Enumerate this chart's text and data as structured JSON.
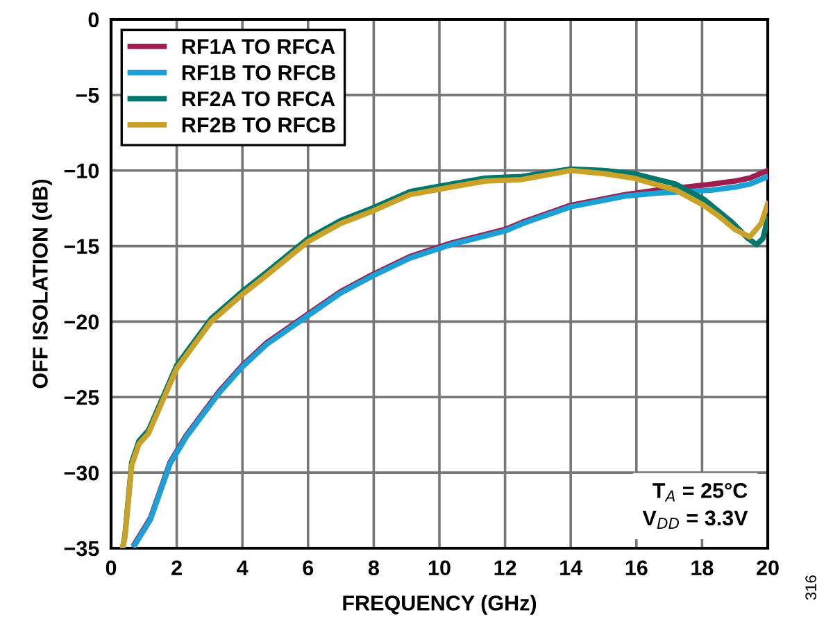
{
  "chart_data": {
    "type": "line",
    "xlabel": "FREQUENCY (GHz)",
    "ylabel": "OFF ISOLATION (dB)",
    "xlim": [
      0,
      20
    ],
    "ylim": [
      -35,
      0
    ],
    "xticks": [
      0,
      2,
      4,
      6,
      8,
      10,
      12,
      14,
      16,
      18,
      20
    ],
    "yticks": [
      -35,
      -30,
      -25,
      -20,
      -15,
      -10,
      -5,
      0
    ],
    "grid": true,
    "legend": "top left",
    "line_style": "solid",
    "marker": "none",
    "series": [
      {
        "name": "RF1A TO RFCA",
        "color": "#9e1f4f",
        "x": [
          0.72,
          1.2,
          1.8,
          2.3,
          3.3,
          4.0,
          4.74,
          6.0,
          7.0,
          7.95,
          9.1,
          10.36,
          12.0,
          12.55,
          14.0,
          15.65,
          16.6,
          17.5,
          18.3,
          19.0,
          19.45,
          20
        ],
        "values": [
          -34.7,
          -33.0,
          -29.3,
          -27.5,
          -24.6,
          -22.9,
          -21.4,
          -19.5,
          -18.0,
          -16.9,
          -15.7,
          -14.8,
          -13.9,
          -13.4,
          -12.3,
          -11.6,
          -11.3,
          -11.1,
          -10.9,
          -10.7,
          -10.5,
          -10.0
        ]
      },
      {
        "name": "RF1B TO RFCB",
        "color": "#1ba1d6",
        "x": [
          0.72,
          1.2,
          1.8,
          2.3,
          3.3,
          4.0,
          4.74,
          6.0,
          7.0,
          7.95,
          9.1,
          10.36,
          12.0,
          12.55,
          14.0,
          15.65,
          16.6,
          17.5,
          18.3,
          19.0,
          19.45,
          20
        ],
        "values": [
          -34.8,
          -33.1,
          -29.4,
          -27.6,
          -24.7,
          -23.0,
          -21.5,
          -19.6,
          -18.1,
          -17.0,
          -15.8,
          -14.9,
          -14.0,
          -13.5,
          -12.4,
          -11.7,
          -11.5,
          -11.4,
          -11.3,
          -11.1,
          -10.9,
          -10.4
        ]
      },
      {
        "name": "RF2A TO RFCA",
        "color": "#00776d",
        "x": [
          0.35,
          0.42,
          0.63,
          0.85,
          1.14,
          1.56,
          2.0,
          3.05,
          4.0,
          4.7,
          6.0,
          7.0,
          7.95,
          9.1,
          10.35,
          11.4,
          12.5,
          14.0,
          15.0,
          15.9,
          17.2,
          18.05,
          18.9,
          19.4,
          19.66,
          19.85,
          20
        ],
        "values": [
          -35.0,
          -34.2,
          -29.3,
          -27.9,
          -27.2,
          -25.1,
          -22.9,
          -19.8,
          -18.0,
          -16.8,
          -14.5,
          -13.3,
          -12.5,
          -11.4,
          -10.9,
          -10.5,
          -10.4,
          -9.9,
          -10.0,
          -10.2,
          -10.9,
          -11.9,
          -13.4,
          -14.5,
          -14.9,
          -14.5,
          -13.2
        ]
      },
      {
        "name": "RF2B TO RFCB",
        "color": "#c9a227",
        "x": [
          0.35,
          0.42,
          0.63,
          0.85,
          1.14,
          1.56,
          2.0,
          3.05,
          4.0,
          4.7,
          6.0,
          7.0,
          7.95,
          9.1,
          10.35,
          11.4,
          12.5,
          14.0,
          15.0,
          15.9,
          17.2,
          18.05,
          18.5,
          19.0,
          19.45,
          19.8,
          20
        ],
        "values": [
          -35.0,
          -34.3,
          -29.5,
          -28.1,
          -27.4,
          -25.3,
          -23.1,
          -20.0,
          -18.2,
          -17.0,
          -14.7,
          -13.5,
          -12.7,
          -11.6,
          -11.1,
          -10.7,
          -10.6,
          -10.0,
          -10.2,
          -10.5,
          -11.3,
          -12.3,
          -13.0,
          -13.9,
          -14.4,
          -13.5,
          -12.2
        ]
      }
    ],
    "annotations": [
      "T$_{A}$ = 25°C\nV$_{DD}$ = 3.3V",
      "316"
    ]
  }
}
